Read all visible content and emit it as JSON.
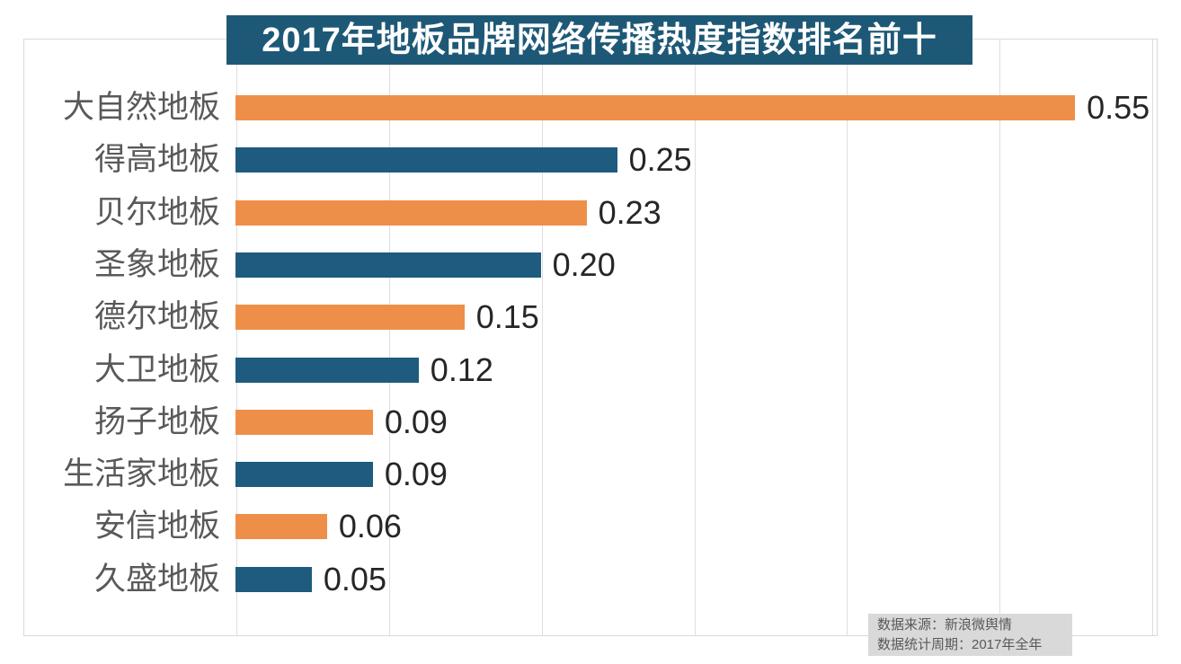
{
  "title": "2017年地板品牌网络传播热度指数排名前十",
  "source_note": {
    "line1": "数据来源：新浪微舆情",
    "line2": "数据统计周期：2017年全年"
  },
  "colors": {
    "orange_bar": "#EE8F49",
    "teal_bar": "#1E5B7E",
    "title_bg": "#1E5877",
    "title_text": "#FFFFFF",
    "gridline": "#DEDEDE",
    "frame_border": "#D9D9D9",
    "category_text": "#595959",
    "value_text": "#262626",
    "source_bg": "#D9D9D9",
    "source_text": "#595959"
  },
  "chart_data": {
    "type": "bar",
    "orientation": "horizontal",
    "title": "2017年地板品牌网络传播热度指数排名前十",
    "categories": [
      "大自然地板",
      "得高地板",
      "贝尔地板",
      "圣象地板",
      "德尔地板",
      "大卫地板",
      "扬子地板",
      "生活家地板",
      "安信地板",
      "久盛地板"
    ],
    "values": [
      0.55,
      0.25,
      0.23,
      0.2,
      0.15,
      0.12,
      0.09,
      0.09,
      0.06,
      0.05
    ],
    "value_labels": [
      "0.55",
      "0.25",
      "0.23",
      "0.20",
      "0.15",
      "0.12",
      "0.09",
      "0.09",
      "0.06",
      "0.05"
    ],
    "xlabel": "",
    "ylabel": "",
    "xlim": [
      0,
      0.6
    ],
    "gridline_interval": 0.1,
    "grid": true,
    "legend": false,
    "bar_color_pattern": [
      "#EE8F49",
      "#1E5B7E"
    ]
  }
}
